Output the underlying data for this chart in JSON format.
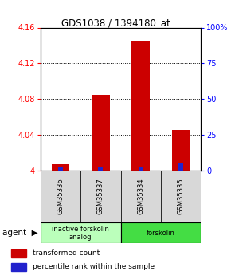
{
  "title": "GDS1038 / 1394180_at",
  "samples": [
    "GSM35336",
    "GSM35337",
    "GSM35334",
    "GSM35335"
  ],
  "red_values": [
    4.007,
    4.085,
    4.145,
    4.045
  ],
  "blue_pct": [
    2,
    2,
    2,
    5
  ],
  "ymin": 4.0,
  "ymax": 4.16,
  "yticks_left": [
    4.0,
    4.04,
    4.08,
    4.12,
    4.16
  ],
  "yticks_right": [
    0,
    25,
    50,
    75,
    100
  ],
  "bar_color_red": "#cc0000",
  "bar_color_blue": "#2222cc",
  "sample_box_color": "#d8d8d8",
  "group_colors": [
    "#bbffbb",
    "#44dd44"
  ],
  "group_labels": [
    "inactive forskolin\nanalog",
    "forskolin"
  ],
  "legend_red": "transformed count",
  "legend_blue": "percentile rank within the sample",
  "agent_label": "agent",
  "title_fontsize": 8.5,
  "tick_fontsize": 7,
  "label_fontsize": 6,
  "legend_fontsize": 6.5
}
